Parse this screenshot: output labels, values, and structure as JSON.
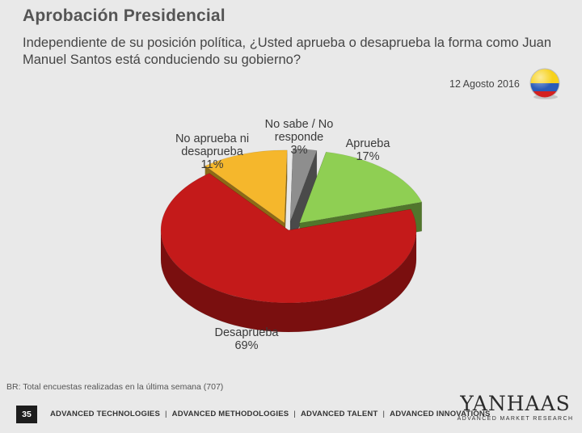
{
  "header": {
    "title": "Aprobación Presidencial",
    "subtitle": "Independiente de su posición política, ¿Usted aprueba o desaprueba la forma como Juan Manuel Santos está conduciendo su gobierno?",
    "date": "12 Agosto 2016"
  },
  "flag": {
    "colors": [
      "#f7d21c",
      "#2a5cb8",
      "#d32020"
    ],
    "icon": "colombia-flag-icon"
  },
  "chart_data": {
    "type": "pie",
    "title": "Aprobación Presidencial",
    "slices": [
      {
        "name": "Aprueba",
        "value": 17,
        "label": "17%",
        "color": "#8fcf53",
        "side_color": "#51762c"
      },
      {
        "name": "Desaprueba",
        "value": 69,
        "label": "69%",
        "color": "#c41a1a",
        "side_color": "#7a0f0f"
      },
      {
        "name": "No aprueba ni desaprueba",
        "value": 11,
        "label": "11%",
        "color": "#f5b72c",
        "side_color": "#8c6a17"
      },
      {
        "name": "No sabe / No responde",
        "value": 3,
        "label": "3%",
        "color": "#8e8e8e",
        "side_color": "#4a4a4a"
      }
    ],
    "label_lines": {
      "aprueba": [
        "Aprueba",
        "17%"
      ],
      "desaprueba": [
        "Desaprueba",
        "69%"
      ],
      "neutral": [
        "No aprueba ni",
        "desaprueba",
        "11%"
      ],
      "nsnr": [
        "No sabe / No",
        "responde",
        "3%"
      ]
    }
  },
  "footnote": "BR: Total encuestas realizadas en la última semana (707)",
  "footer": {
    "page_number": "35",
    "nav_items": [
      "ADVANCED TECHNOLOGIES",
      "ADVANCED METHODOLOGIES",
      "ADVANCED TALENT",
      "ADVANCED INNOVATIONS"
    ],
    "separator": "|",
    "logo_main": "YANHAAS",
    "logo_sub": "ADVANCED MARKET RESEARCH"
  }
}
